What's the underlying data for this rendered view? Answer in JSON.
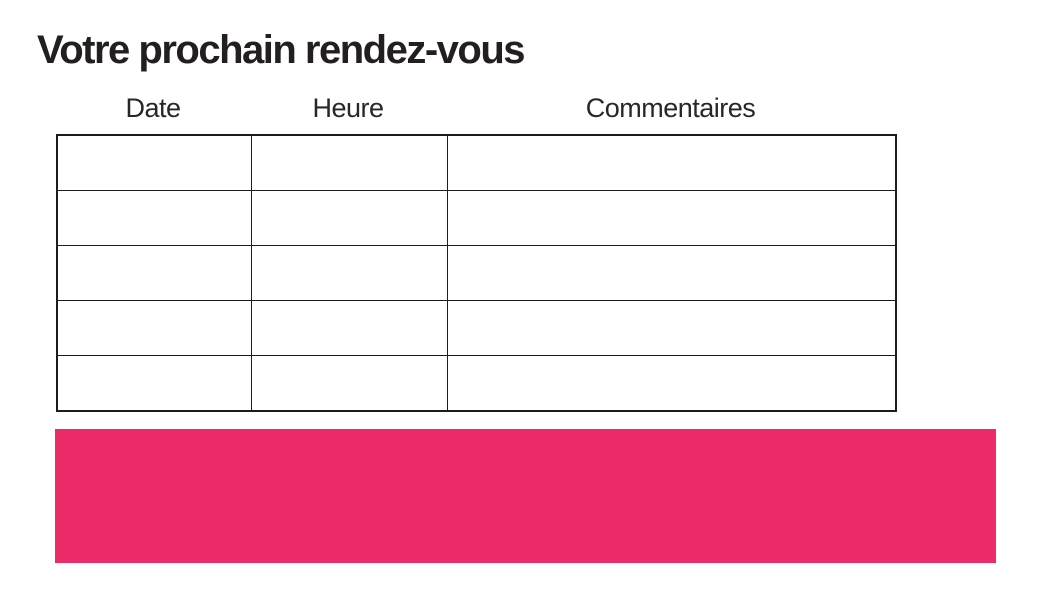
{
  "page": {
    "title": "Votre prochain rendez-vous"
  },
  "table": {
    "columns": [
      {
        "label": "Date"
      },
      {
        "label": "Heure"
      },
      {
        "label": "Commentaires"
      }
    ],
    "rows": [
      [
        "",
        "",
        ""
      ],
      [
        "",
        "",
        ""
      ],
      [
        "",
        "",
        ""
      ],
      [
        "",
        "",
        ""
      ],
      [
        "",
        "",
        ""
      ]
    ]
  },
  "banner": {
    "text": ""
  },
  "colors": {
    "accent_pink": "#ED2B68",
    "table_border": "#1C1C1C",
    "text": "#231F20"
  }
}
